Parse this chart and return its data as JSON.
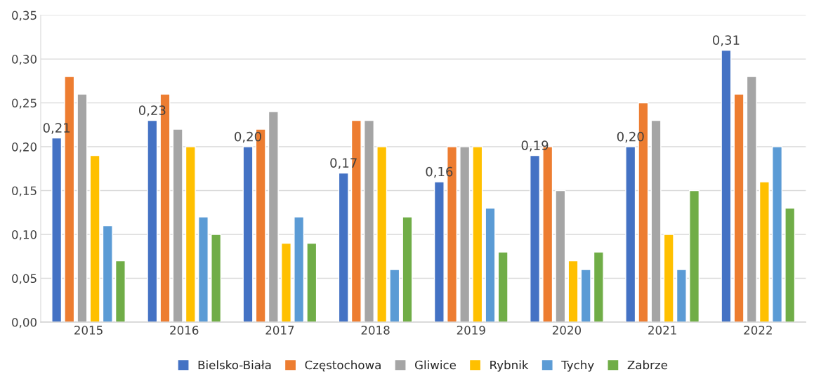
{
  "chart_data": {
    "type": "bar",
    "categories": [
      "2015",
      "2016",
      "2017",
      "2018",
      "2019",
      "2020",
      "2021",
      "2022"
    ],
    "series": [
      {
        "name": "Bielsko-Biała",
        "color": "#4472c4",
        "values": [
          0.21,
          0.23,
          0.2,
          0.17,
          0.16,
          0.19,
          0.2,
          0.31
        ],
        "value_labels": [
          "0,21",
          "0,23",
          "0,20",
          "0,17",
          "0,16",
          "0,19",
          "0,20",
          "0,31"
        ]
      },
      {
        "name": "Częstochowa",
        "color": "#ed7d31",
        "values": [
          0.28,
          0.26,
          0.22,
          0.23,
          0.2,
          0.2,
          0.25,
          0.26
        ]
      },
      {
        "name": "Gliwice",
        "color": "#a5a5a5",
        "values": [
          0.26,
          0.22,
          0.24,
          0.23,
          0.2,
          0.15,
          0.23,
          0.28
        ]
      },
      {
        "name": "Rybnik",
        "color": "#ffc000",
        "values": [
          0.19,
          0.2,
          0.09,
          0.2,
          0.2,
          0.07,
          0.1,
          0.16
        ]
      },
      {
        "name": "Tychy",
        "color": "#5b9bd5",
        "values": [
          0.11,
          0.12,
          0.12,
          0.06,
          0.13,
          0.06,
          0.06,
          0.2
        ]
      },
      {
        "name": "Zabrze",
        "color": "#70ad47",
        "values": [
          0.07,
          0.1,
          0.09,
          0.12,
          0.08,
          0.08,
          0.15,
          0.13
        ]
      }
    ],
    "ylim": [
      0,
      0.35
    ],
    "yticks": [
      {
        "value": 0,
        "label": "0,00"
      },
      {
        "value": 0.05,
        "label": "0,05"
      },
      {
        "value": 0.1,
        "label": "0,10"
      },
      {
        "value": 0.15,
        "label": "0,15"
      },
      {
        "value": 0.2,
        "label": "0,20"
      },
      {
        "value": 0.25,
        "label": "0,25"
      },
      {
        "value": 0.3,
        "label": "0,30"
      },
      {
        "value": 0.35,
        "label": "0,35"
      }
    ],
    "grid": "y",
    "legend": "bottom"
  }
}
